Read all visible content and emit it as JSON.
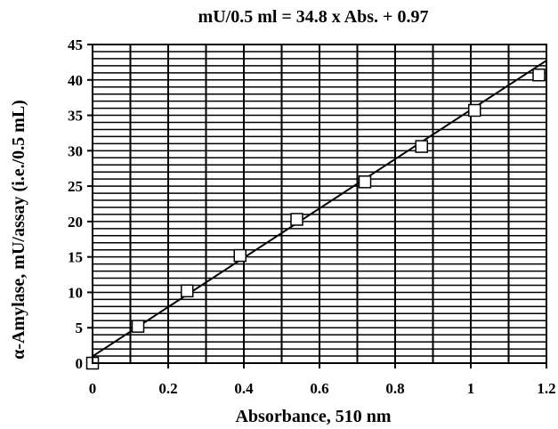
{
  "chart_data": {
    "type": "scatter",
    "title": "mU/0.5 ml = 34.8 x Abs. + 0.97",
    "xlabel": "Absorbance,  510 nm",
    "ylabel": "α-Amylase, mU/assay (i.e./0.5 mL)",
    "xlim": [
      0,
      1.2
    ],
    "ylim": [
      0,
      45
    ],
    "x_ticks": [
      "0",
      "0.2",
      "0.4",
      "0.6",
      "0.8",
      "1",
      "1.2"
    ],
    "y_ticks": [
      "0",
      "5",
      "10",
      "15",
      "20",
      "25",
      "30",
      "35",
      "40",
      "45"
    ],
    "grid": true,
    "legend": "none",
    "series": [
      {
        "x": [
          0.0,
          0.12,
          0.25,
          0.39,
          0.54,
          0.72,
          0.87,
          1.01,
          1.18
        ],
        "y": [
          0.0,
          5.2,
          10.2,
          15.2,
          20.3,
          25.6,
          30.6,
          35.7,
          40.7
        ]
      }
    ],
    "fit_line": {
      "slope": 34.8,
      "intercept": 0.97,
      "x_range": [
        0,
        1.2
      ]
    }
  }
}
